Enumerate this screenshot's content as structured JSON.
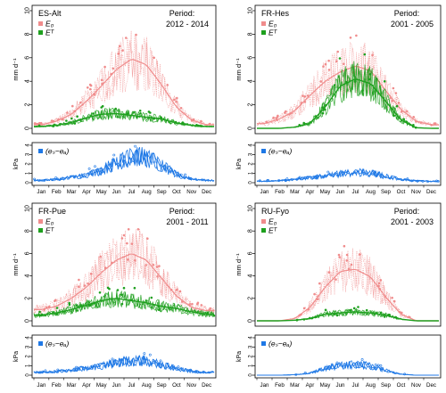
{
  "colors": {
    "eo": "#f08c8c",
    "et": "#1ea01e",
    "vpd": "#1e78e6"
  },
  "months": [
    "Jan",
    "Feb",
    "Mar",
    "Apr",
    "May",
    "Jun",
    "Jul",
    "Aug",
    "Sep",
    "Oct",
    "Nov",
    "Dec"
  ],
  "chart_data": [
    {
      "type": "line",
      "site": "ES-Alt",
      "period_label": "Period:",
      "period": "2012 - 2014",
      "ylabel": "mm d⁻¹",
      "ylim": [
        0,
        10
      ],
      "yticks": [
        "0",
        "2",
        "4",
        "6",
        "8",
        "10"
      ],
      "x": [
        "Jan",
        "Feb",
        "Mar",
        "Apr",
        "May",
        "Jun",
        "Jul",
        "Aug",
        "Sep",
        "Oct",
        "Nov",
        "Dec"
      ],
      "series": [
        {
          "name": "E₀",
          "values": [
            0.3,
            0.6,
            1.2,
            2.3,
            3.6,
            5.0,
            5.9,
            5.4,
            3.7,
            1.8,
            0.7,
            0.3
          ]
        },
        {
          "name": "Eᵀ",
          "values": [
            0.15,
            0.25,
            0.5,
            0.9,
            1.2,
            1.25,
            1.1,
            0.95,
            0.8,
            0.45,
            0.25,
            0.15
          ]
        }
      ],
      "vpd": {
        "name": "(eₛ−eₐ)",
        "ylabel": "kPa",
        "ylim": [
          0,
          4
        ],
        "yticks": [
          "0",
          "1",
          "2",
          "3",
          "4"
        ],
        "values": [
          0.25,
          0.35,
          0.55,
          0.85,
          1.3,
          2.1,
          2.8,
          2.7,
          1.8,
          0.9,
          0.4,
          0.25
        ]
      }
    },
    {
      "type": "line",
      "site": "FR-Hes",
      "period_label": "Period:",
      "period": "2001 - 2005",
      "ylabel": "mm d⁻¹",
      "ylim": [
        0,
        10
      ],
      "yticks": [
        "0",
        "2",
        "4",
        "6",
        "8",
        "10"
      ],
      "x": [
        "Jan",
        "Feb",
        "Mar",
        "Apr",
        "May",
        "Jun",
        "Jul",
        "Aug",
        "Sep",
        "Oct",
        "Nov",
        "Dec"
      ],
      "series": [
        {
          "name": "E₀",
          "values": [
            0.4,
            0.8,
            1.5,
            2.8,
            4.0,
            4.8,
            5.3,
            4.9,
            3.2,
            1.6,
            0.6,
            0.3
          ]
        },
        {
          "name": "Eᵀ",
          "values": [
            0.0,
            0.0,
            0.1,
            0.4,
            1.8,
            3.6,
            4.2,
            3.8,
            2.3,
            0.7,
            0.05,
            0.0
          ]
        }
      ],
      "vpd": {
        "name": "(eₛ−eₐ)",
        "ylabel": "kPa",
        "ylim": [
          0,
          4
        ],
        "yticks": [
          "0",
          "1",
          "2",
          "3",
          "4"
        ],
        "values": [
          0.15,
          0.2,
          0.35,
          0.55,
          0.7,
          0.95,
          1.1,
          1.05,
          0.7,
          0.35,
          0.2,
          0.15
        ]
      }
    },
    {
      "type": "line",
      "site": "FR-Pue",
      "period_label": "Period:",
      "period": "2001 - 2011",
      "ylabel": "mm d⁻¹",
      "ylim": [
        0,
        10
      ],
      "yticks": [
        "0",
        "2",
        "4",
        "6",
        "8",
        "10"
      ],
      "x": [
        "Jan",
        "Feb",
        "Mar",
        "Apr",
        "May",
        "Jun",
        "Jul",
        "Aug",
        "Sep",
        "Oct",
        "Nov",
        "Dec"
      ],
      "series": [
        {
          "name": "E₀",
          "values": [
            1.0,
            1.3,
            2.0,
            3.0,
            4.3,
            5.4,
            6.0,
            5.4,
            3.8,
            2.2,
            1.2,
            0.9
          ]
        },
        {
          "name": "Eᵀ",
          "values": [
            0.5,
            0.7,
            1.0,
            1.4,
            1.8,
            2.0,
            1.8,
            1.6,
            1.3,
            1.1,
            0.8,
            0.6
          ]
        }
      ],
      "vpd": {
        "name": "(eₛ−eₐ)",
        "ylabel": "kPa",
        "ylim": [
          0,
          4
        ],
        "yticks": [
          "0",
          "1",
          "2",
          "3",
          "4"
        ],
        "values": [
          0.3,
          0.4,
          0.55,
          0.75,
          1.0,
          1.3,
          1.6,
          1.5,
          1.1,
          0.7,
          0.4,
          0.3
        ]
      }
    },
    {
      "type": "line",
      "site": "RU-Fyo",
      "period_label": "Period:",
      "period": "2001 - 2003",
      "ylabel": "mm d⁻¹",
      "ylim": [
        0,
        10
      ],
      "yticks": [
        "0",
        "2",
        "4",
        "6",
        "8",
        "10"
      ],
      "x": [
        "Jan",
        "Feb",
        "Mar",
        "Apr",
        "May",
        "Jun",
        "Jul",
        "Aug",
        "Sep",
        "Oct",
        "Nov",
        "Dec"
      ],
      "series": [
        {
          "name": "E₀",
          "values": [
            0.0,
            0.0,
            0.2,
            1.2,
            3.0,
            4.4,
            4.6,
            3.9,
            2.1,
            0.6,
            0.0,
            0.0
          ]
        },
        {
          "name": "Eᵀ",
          "values": [
            0.0,
            0.0,
            0.05,
            0.2,
            0.6,
            0.7,
            0.8,
            0.7,
            0.5,
            0.15,
            0.0,
            0.0
          ]
        }
      ],
      "vpd": {
        "name": "(eₛ−eₐ)",
        "ylabel": "kPa",
        "ylim": [
          0,
          4
        ],
        "yticks": [
          "0",
          "1",
          "2",
          "3",
          "4"
        ],
        "values": [
          0.0,
          0.0,
          0.05,
          0.2,
          0.7,
          1.0,
          1.15,
          1.0,
          0.5,
          0.1,
          0.0,
          0.0
        ]
      }
    }
  ]
}
